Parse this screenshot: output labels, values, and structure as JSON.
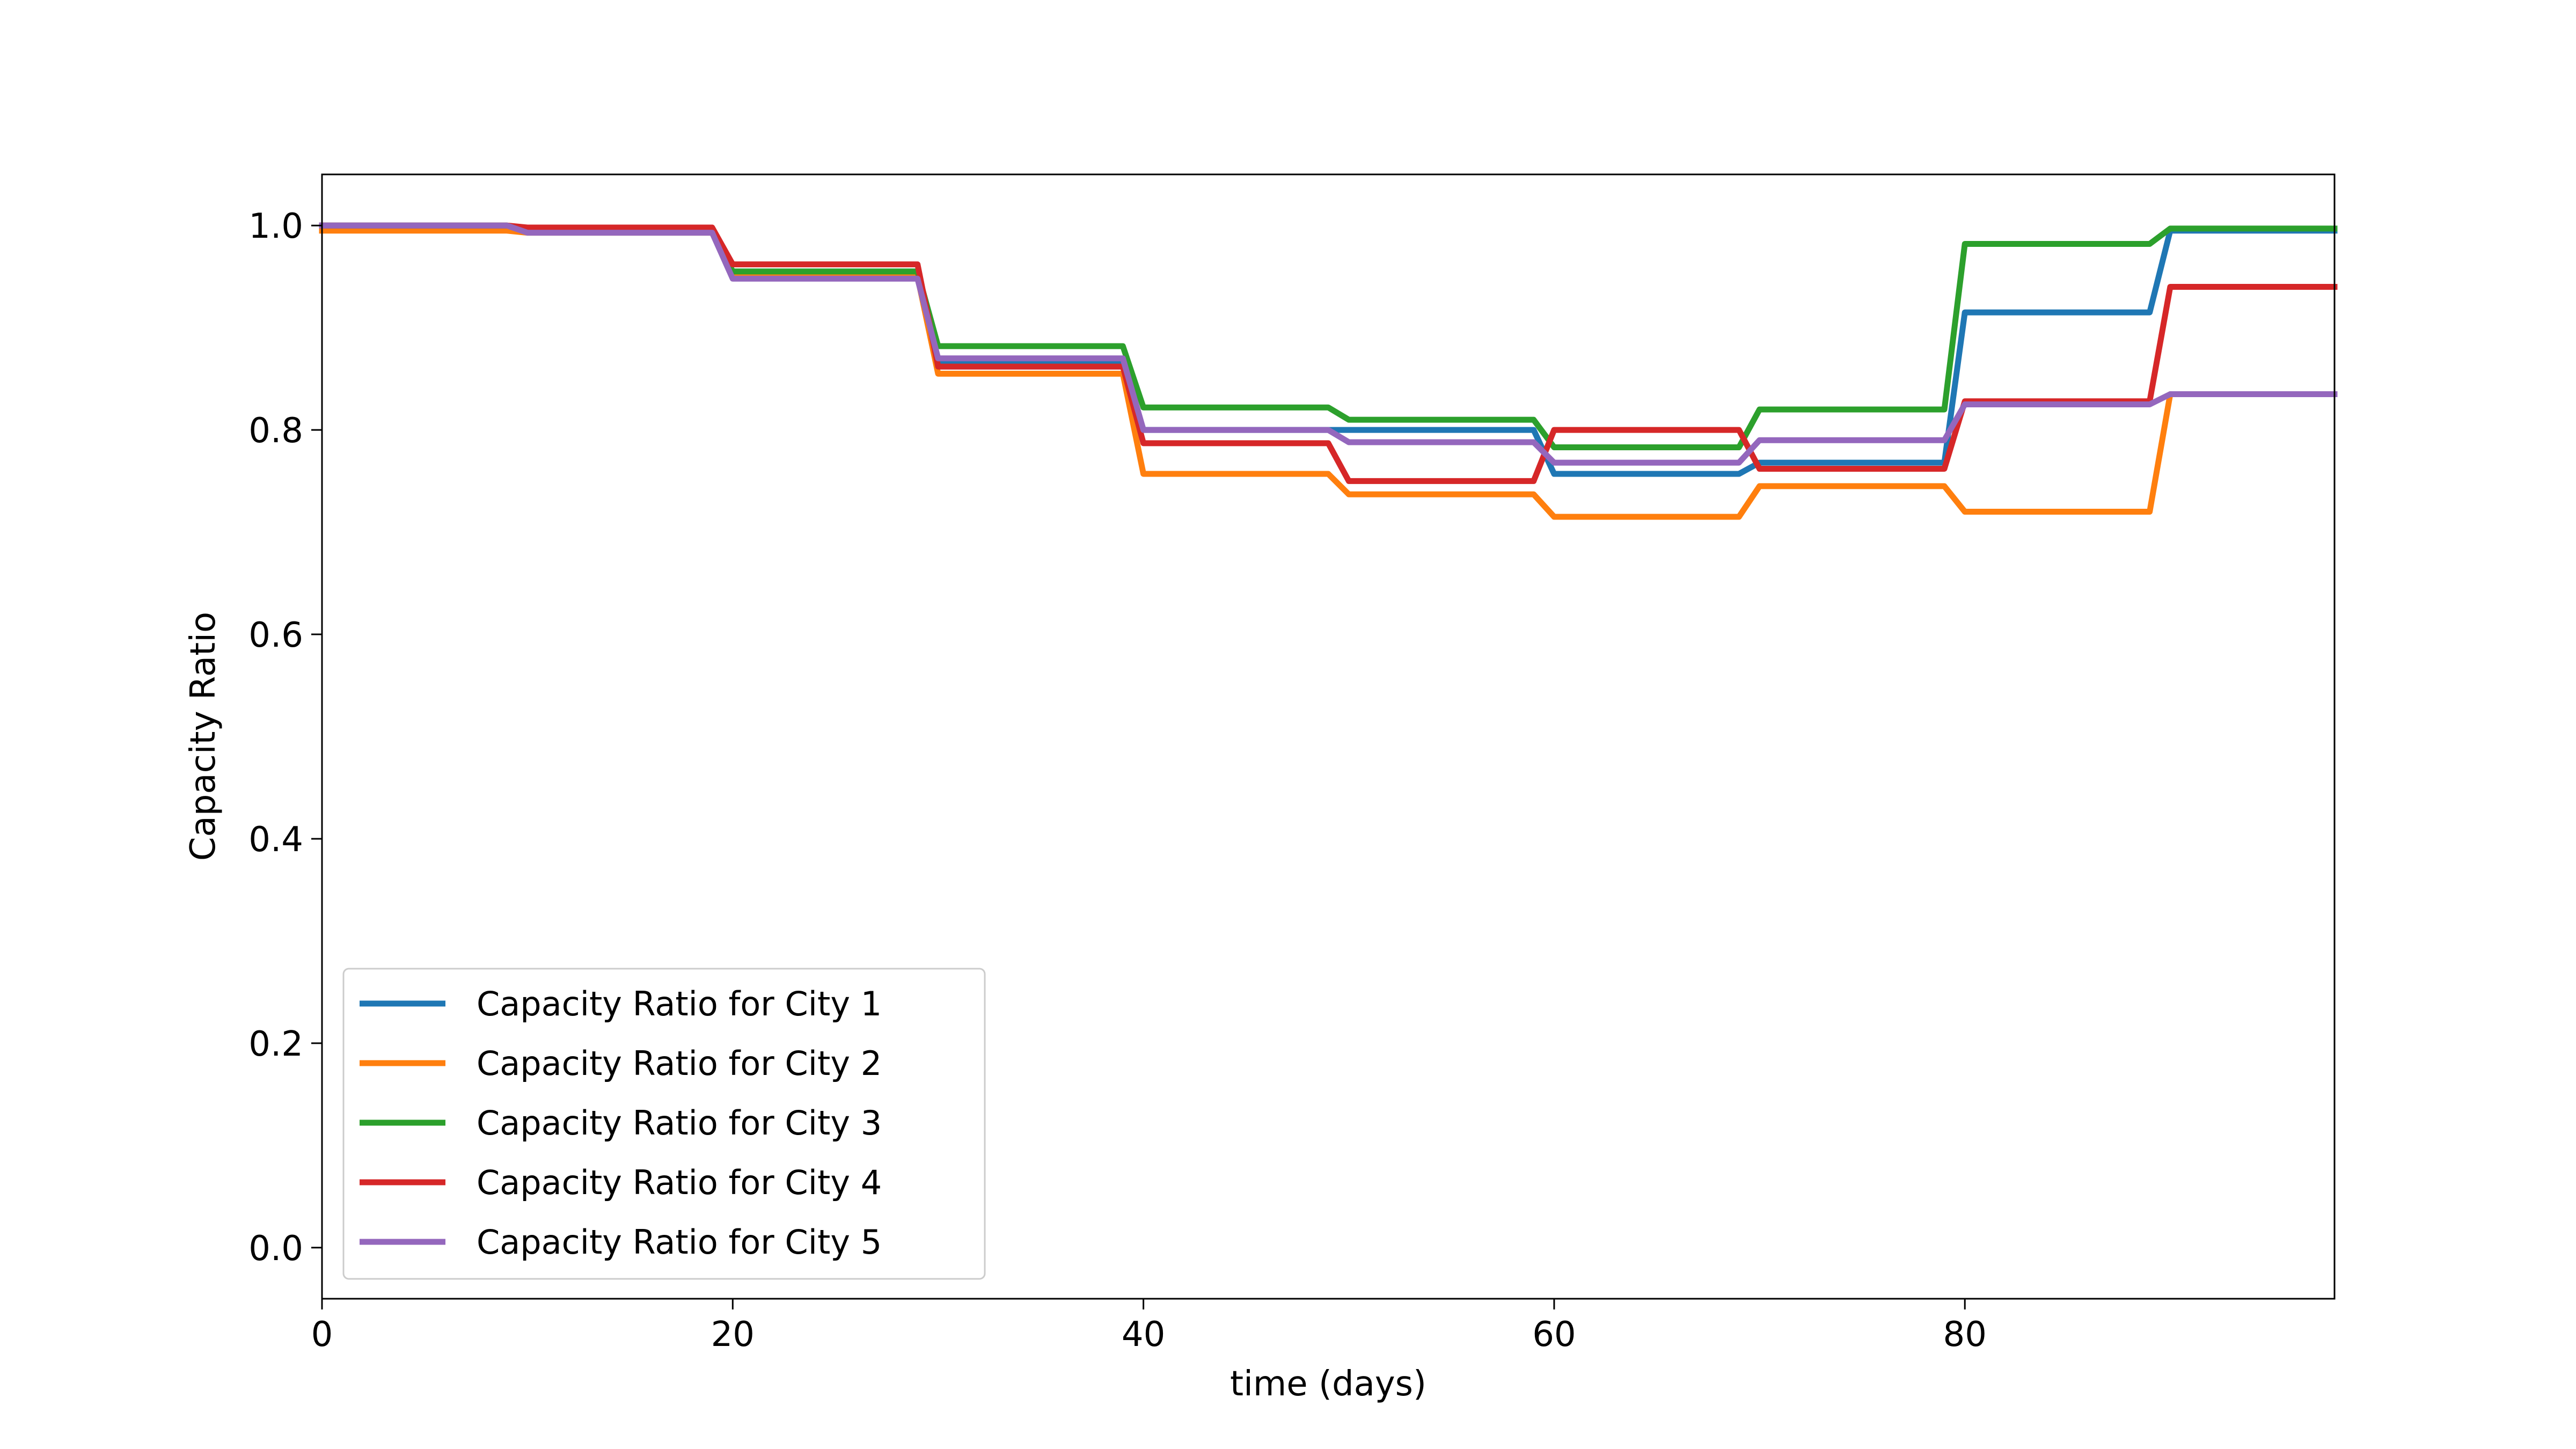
{
  "chart_data": {
    "type": "line",
    "title": "",
    "xlabel": "time (days)",
    "ylabel": "Capacity Ratio",
    "xlim": [
      0,
      98
    ],
    "ylim": [
      -0.05,
      1.05
    ],
    "xticks": [
      0,
      20,
      40,
      60,
      80
    ],
    "yticks": [
      0.0,
      0.2,
      0.4,
      0.6,
      0.8,
      1.0
    ],
    "xtick_labels": [
      "0",
      "20",
      "40",
      "60",
      "80"
    ],
    "ytick_labels": [
      "0.0",
      "0.2",
      "0.4",
      "0.6",
      "0.8",
      "1.0"
    ],
    "grid": false,
    "legend_position": "lower-left",
    "series": [
      {
        "name": "Capacity Ratio for City 1",
        "color": "#1f77b4",
        "x": [
          0,
          9,
          10,
          19,
          20,
          29,
          30,
          39,
          40,
          49,
          50,
          59,
          60,
          69,
          70,
          79,
          80,
          89,
          90,
          98
        ],
        "y": [
          1.0,
          1.0,
          0.995,
          0.995,
          0.955,
          0.955,
          0.865,
          0.865,
          0.8,
          0.8,
          0.8,
          0.8,
          0.757,
          0.757,
          0.768,
          0.768,
          0.915,
          0.915,
          0.995,
          0.995
        ]
      },
      {
        "name": "Capacity Ratio for City 2",
        "color": "#ff7f0e",
        "x": [
          0,
          9,
          10,
          19,
          20,
          29,
          30,
          39,
          40,
          49,
          50,
          59,
          60,
          69,
          70,
          79,
          80,
          89,
          90,
          98
        ],
        "y": [
          0.995,
          0.995,
          0.993,
          0.993,
          0.95,
          0.95,
          0.855,
          0.855,
          0.757,
          0.757,
          0.737,
          0.737,
          0.715,
          0.715,
          0.745,
          0.745,
          0.72,
          0.72,
          0.835,
          0.835
        ]
      },
      {
        "name": "Capacity Ratio for City 3",
        "color": "#2ca02c",
        "x": [
          0,
          9,
          10,
          19,
          20,
          29,
          30,
          39,
          40,
          49,
          50,
          59,
          60,
          69,
          70,
          79,
          80,
          89,
          90,
          98
        ],
        "y": [
          1.0,
          1.0,
          0.995,
          0.995,
          0.955,
          0.955,
          0.882,
          0.882,
          0.822,
          0.822,
          0.81,
          0.81,
          0.783,
          0.783,
          0.82,
          0.82,
          0.982,
          0.982,
          0.997,
          0.997
        ]
      },
      {
        "name": "Capacity Ratio for City 4",
        "color": "#d62728",
        "x": [
          0,
          9,
          10,
          19,
          20,
          29,
          30,
          39,
          40,
          49,
          50,
          59,
          60,
          69,
          70,
          79,
          80,
          89,
          90,
          98
        ],
        "y": [
          1.0,
          1.0,
          0.998,
          0.998,
          0.962,
          0.962,
          0.862,
          0.862,
          0.787,
          0.787,
          0.75,
          0.75,
          0.8,
          0.8,
          0.762,
          0.762,
          0.828,
          0.828,
          0.94,
          0.94
        ]
      },
      {
        "name": "Capacity Ratio for City 5",
        "color": "#9467bd",
        "x": [
          0,
          9,
          10,
          19,
          20,
          29,
          30,
          39,
          40,
          49,
          50,
          59,
          60,
          69,
          70,
          79,
          80,
          89,
          90,
          98
        ],
        "y": [
          1.0,
          1.0,
          0.993,
          0.993,
          0.948,
          0.948,
          0.87,
          0.87,
          0.8,
          0.8,
          0.788,
          0.788,
          0.768,
          0.768,
          0.79,
          0.79,
          0.825,
          0.825,
          0.835,
          0.835
        ]
      }
    ]
  }
}
